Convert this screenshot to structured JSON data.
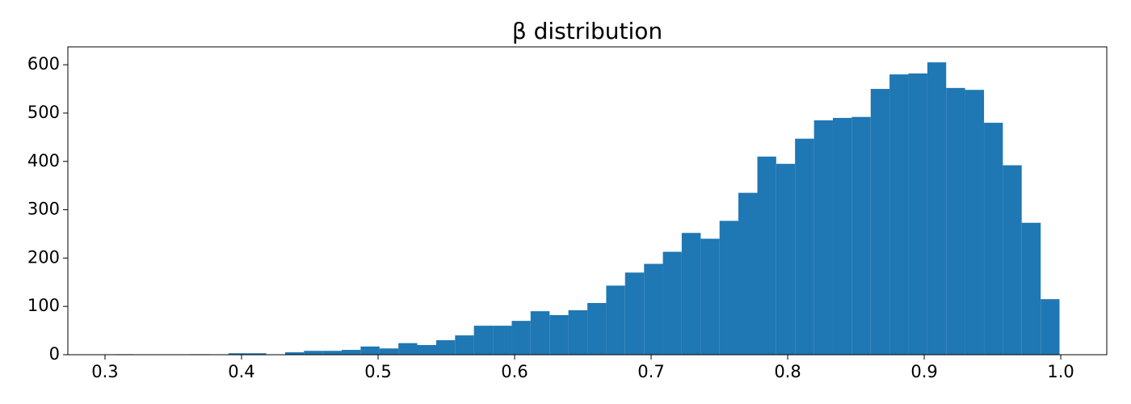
{
  "chart_data": {
    "type": "histogram",
    "title": "β distribution",
    "color": "#1f77b4",
    "bins": [
      0.3074,
      0.3212,
      0.3351,
      0.3489,
      0.3627,
      0.3766,
      0.3904,
      0.4042,
      0.4181,
      0.4319,
      0.4457,
      0.4596,
      0.4734,
      0.4872,
      0.5011,
      0.5149,
      0.5287,
      0.5426,
      0.5564,
      0.5702,
      0.5841,
      0.5979,
      0.6117,
      0.6256,
      0.6394,
      0.6533,
      0.6671,
      0.6809,
      0.6948,
      0.7086,
      0.7224,
      0.7363,
      0.7501,
      0.7639,
      0.7778,
      0.7916,
      0.8054,
      0.8193,
      0.8331,
      0.8469,
      0.8608,
      0.8746,
      0.8884,
      0.9023,
      0.9161,
      0.9299,
      0.9438,
      0.9576,
      0.9714,
      0.9853,
      0.9991
    ],
    "counts": [
      1,
      0,
      0,
      0,
      1,
      0,
      3,
      3,
      0,
      5,
      8,
      8,
      10,
      17,
      13,
      24,
      20,
      30,
      40,
      60,
      60,
      70,
      90,
      82,
      92,
      107,
      143,
      170,
      188,
      213,
      252,
      240,
      277,
      335,
      410,
      395,
      447,
      485,
      490,
      492,
      550,
      580,
      582,
      605,
      552,
      548,
      480,
      392,
      273,
      115
    ],
    "xlim": [
      0.2728,
      1.0337
    ],
    "ylim": [
      0,
      637
    ],
    "xticks": [
      0.3,
      0.4,
      0.5,
      0.6,
      0.7,
      0.8,
      0.9,
      {
        "value": 1,
        "label": "1.0"
      }
    ],
    "yticks": [
      0,
      100,
      200,
      300,
      400,
      500,
      600
    ]
  }
}
